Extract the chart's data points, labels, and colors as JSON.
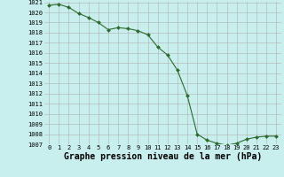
{
  "x": [
    0,
    1,
    2,
    3,
    4,
    5,
    6,
    7,
    8,
    9,
    10,
    11,
    12,
    13,
    14,
    15,
    16,
    17,
    18,
    19,
    20,
    21,
    22,
    23
  ],
  "y": [
    1020.7,
    1020.8,
    1020.5,
    1019.9,
    1019.5,
    1019.0,
    1018.3,
    1018.5,
    1018.4,
    1018.2,
    1017.8,
    1016.6,
    1015.8,
    1014.3,
    1011.8,
    1008.0,
    1007.4,
    1007.1,
    1006.9,
    1007.1,
    1007.5,
    1007.7,
    1007.8,
    1007.8
  ],
  "ylim": [
    1007,
    1021
  ],
  "yticks": [
    1007,
    1008,
    1009,
    1010,
    1011,
    1012,
    1013,
    1014,
    1015,
    1016,
    1017,
    1018,
    1019,
    1020,
    1021
  ],
  "xticks": [
    0,
    1,
    2,
    3,
    4,
    5,
    6,
    7,
    8,
    9,
    10,
    11,
    12,
    13,
    14,
    15,
    16,
    17,
    18,
    19,
    20,
    21,
    22,
    23
  ],
  "xlabel": "Graphe pression niveau de la mer (hPa)",
  "line_color": "#2d6a2d",
  "marker_color": "#2d6a2d",
  "bg_color": "#c8eeee",
  "grid_color": "#b0b0b0",
  "tick_label_fontsize": 5.0,
  "xlabel_fontsize": 7.0
}
